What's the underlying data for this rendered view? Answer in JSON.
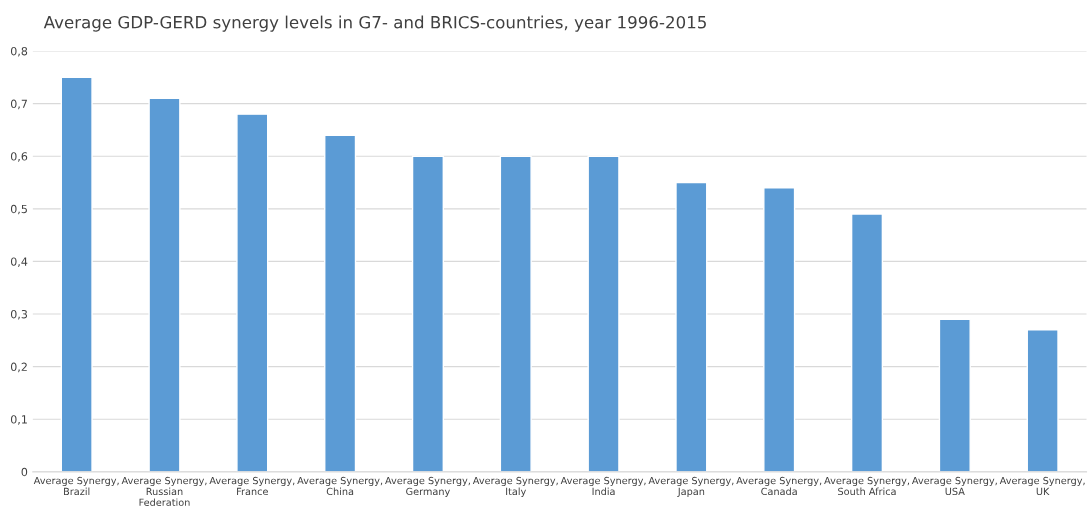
{
  "chart_data": {
    "type": "bar",
    "title": "Average GDP-GERD synergy levels in G7- and BRICS-countries, year 1996-2015",
    "categories": [
      "Average Synergy,\nBrazil",
      "Average Synergy,\nRussian\nFederation",
      "Average Synergy,\nFrance",
      "Average Synergy,\nChina",
      "Average Synergy,\nGermany",
      "Average Synergy,\nItaly",
      "Average Synergy,\nIndia",
      "Average Synergy,\nJapan",
      "Average Synergy,\nCanada",
      "Average Synergy,\nSouth Africa",
      "Average Synergy,\nUSA",
      "Average Synergy,\nUK"
    ],
    "values": [
      0.75,
      0.71,
      0.68,
      0.64,
      0.6,
      0.6,
      0.6,
      0.55,
      0.54,
      0.49,
      0.29,
      0.27
    ],
    "color": "#5b9bd5",
    "ylim": [
      0,
      0.8
    ],
    "yticks": [
      0,
      {
        "value": 0.1,
        "label": "0,1"
      },
      {
        "value": 0.2,
        "label": "0,2"
      },
      {
        "value": 0.3,
        "label": "0,3"
      },
      {
        "value": 0.4,
        "label": "0,4"
      },
      {
        "value": 0.5,
        "label": "0,5"
      },
      {
        "value": 0.6,
        "label": "0,6"
      },
      {
        "value": 0.7,
        "label": "0,7"
      },
      {
        "value": 0.8,
        "label": "0,8"
      }
    ],
    "grid": "y",
    "legend": false
  }
}
